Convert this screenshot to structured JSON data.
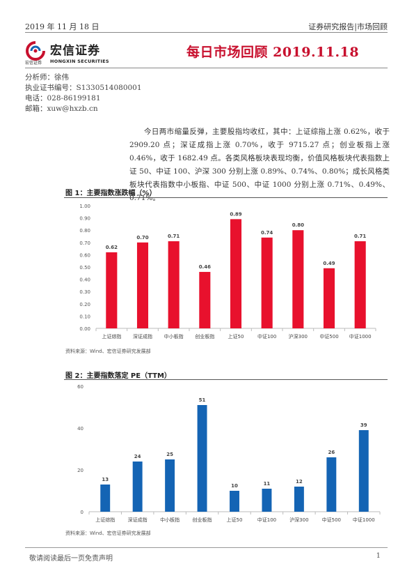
{
  "header": {
    "date": "2019 年 11 月 18 日",
    "category": "证券研究报告|市场回顾"
  },
  "logo": {
    "name_cn": "宏信证券",
    "name_cn_small": "宏信证券",
    "name_en": "HONGXIN SECURITIES"
  },
  "title": "每日市场回顾 2019.11.18",
  "analyst": {
    "name": "分析师：徐伟",
    "license": "执业证书编号：S1330514080001",
    "phone": "电话：028-86199181",
    "email": "邮箱：xuw@hxzb.cn"
  },
  "summary": "今日两市缩量反弹，主要股指均收红，其中：上证综指上涨 0.62%，收于 2909.20 点；深证成指上涨 0.70%，收于 9715.27 点；创业板指上涨 0.46%，收于 1682.49 点。各类风格板块表现均衡，价值风格板块代表指数上证 50、中证 100、沪深 300 分别上涨 0.89%、0.74%、0.80%；成长风格类板块代表指数中小板指、中证 500、中证 1000 分别上涨 0.71%、0.49%、0.71%。",
  "figure1": {
    "title": "图 1：主要指数涨跌幅（%）",
    "source": "资料来源：Wind、宏信证券研究发展部"
  },
  "figure2": {
    "title": "图 2：主要指数落定 PE（TTM）",
    "source": "资料来源：Wind、宏信证券研究发展部"
  },
  "footer": {
    "disclaimer": "敬请阅读最后一页免责声明",
    "page": "1"
  },
  "chart_data": [
    {
      "type": "bar",
      "categories": [
        "上证综指",
        "深证成指",
        "中小板指",
        "创业板指",
        "上证50",
        "中证100",
        "沪深300",
        "中证500",
        "中证1000"
      ],
      "values": [
        0.62,
        0.7,
        0.71,
        0.46,
        0.89,
        0.74,
        0.8,
        0.49,
        0.71
      ],
      "value_labels": [
        "0.62",
        "0.70",
        "0.71",
        "0.46",
        "0.89",
        "0.74",
        "0.80",
        "0.49",
        "0.71"
      ],
      "yticks": [
        "0.00",
        "0.10",
        "0.20",
        "0.30",
        "0.40",
        "0.50",
        "0.60",
        "0.70",
        "0.80",
        "0.90",
        "1.00"
      ],
      "ylim": [
        0,
        1.0
      ],
      "grid": false,
      "color": "#e8112d"
    },
    {
      "type": "bar",
      "categories": [
        "上证综指",
        "深证成指",
        "中小板指",
        "创业板指",
        "上证50",
        "中证100",
        "沪深300",
        "中证500",
        "中证1000"
      ],
      "values": [
        13,
        24,
        25,
        51,
        10,
        11,
        12,
        26,
        39
      ],
      "value_labels": [
        "13",
        "24",
        "25",
        "51",
        "10",
        "11",
        "12",
        "26",
        "39"
      ],
      "yticks": [
        "0",
        "20",
        "40",
        "60"
      ],
      "ylim": [
        0,
        60
      ],
      "grid": false,
      "color": "#1464b4"
    }
  ]
}
